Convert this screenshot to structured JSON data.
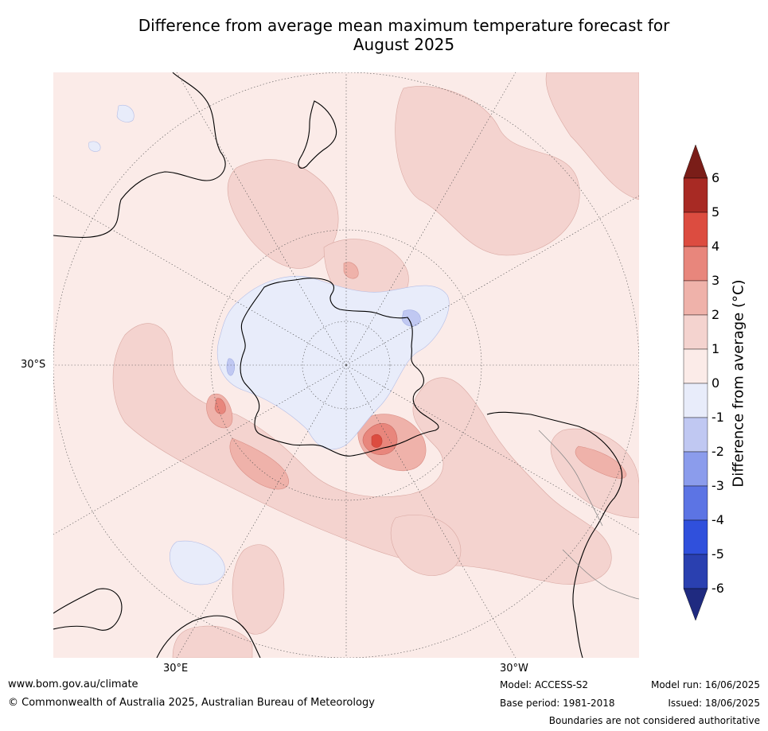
{
  "title_line1": "Difference from average mean maximum temperature forecast for",
  "title_line2": "August 2025",
  "map": {
    "projection": "south-polar-stereographic",
    "latitude_labels": [
      "30°S"
    ],
    "longitude_labels": [
      "30°E",
      "30°W"
    ],
    "colors": {
      "ocean_bg": "#fbebe8",
      "coast": "#000000"
    }
  },
  "colorbar": {
    "label": "Difference from average (°C)",
    "ticks": [
      "6",
      "5",
      "4",
      "3",
      "2",
      "1",
      "0",
      "-1",
      "-2",
      "-3",
      "-4",
      "-5",
      "-6"
    ],
    "bins": [
      {
        "range": ">6",
        "color": "#7a1d18"
      },
      {
        "range": "5 to 6",
        "color": "#a82a24"
      },
      {
        "range": "4 to 5",
        "color": "#dc4c40"
      },
      {
        "range": "3 to 4",
        "color": "#e8867c"
      },
      {
        "range": "2 to 3",
        "color": "#efb2aa"
      },
      {
        "range": "1 to 2",
        "color": "#f4d3cf"
      },
      {
        "range": "0 to 1",
        "color": "#fbebe8"
      },
      {
        "range": "-1 to 0",
        "color": "#e8ecfa"
      },
      {
        "range": "-2 to -1",
        "color": "#c0c8f2"
      },
      {
        "range": "-3 to -2",
        "color": "#8b9cec"
      },
      {
        "range": "-4 to -3",
        "color": "#5c74e4"
      },
      {
        "range": "-5 to -4",
        "color": "#3050dc"
      },
      {
        "range": "-6 to -5",
        "color": "#2a40b0"
      },
      {
        "range": "<-6",
        "color": "#1f2a80"
      }
    ]
  },
  "footer": {
    "url": "www.bom.gov.au/climate",
    "copyright": "© Commonwealth of Australia 2025, Australian Bureau of Meteorology",
    "model": "Model: ACCESS-S2",
    "base_period": "Base period: 1981-2018",
    "model_run": "Model run: 16/06/2025",
    "issued": "Issued: 18/06/2025",
    "disclaimer": "Boundaries are not considered authoritative"
  }
}
